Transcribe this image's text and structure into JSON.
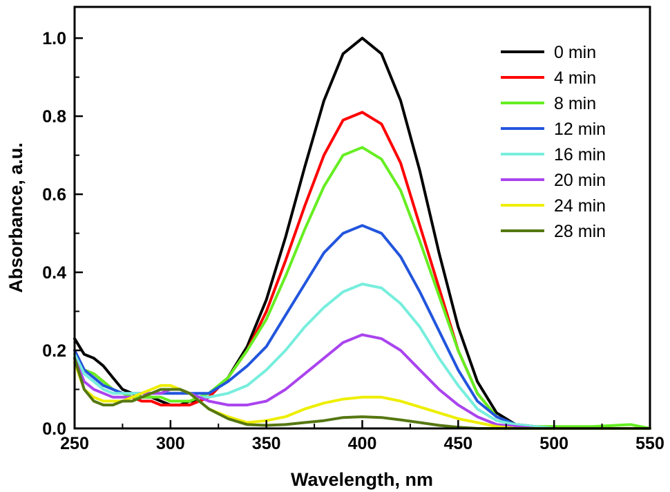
{
  "chart_data": {
    "type": "line",
    "title": "",
    "xlabel": "Wavelength, nm",
    "ylabel": "Absorbance, a.u.",
    "xlim": [
      250,
      550
    ],
    "ylim": [
      0.0,
      1.08
    ],
    "xticks": [
      "250",
      "300",
      "350",
      "400",
      "450",
      "500",
      "550"
    ],
    "yticks": [
      "0.0",
      "0.2",
      "0.4",
      "0.6",
      "0.8",
      "1.0"
    ],
    "grid": false,
    "legend_position": "top-right",
    "series": [
      {
        "name": "0 min",
        "color": "#000000",
        "x": [
          250,
          255,
          260,
          265,
          270,
          275,
          280,
          285,
          290,
          295,
          300,
          305,
          310,
          315,
          320,
          330,
          340,
          350,
          360,
          370,
          380,
          390,
          400,
          410,
          420,
          430,
          440,
          450,
          460,
          470,
          480,
          490,
          500,
          520,
          550
        ],
        "y": [
          0.23,
          0.19,
          0.18,
          0.16,
          0.13,
          0.1,
          0.09,
          0.08,
          0.08,
          0.07,
          0.06,
          0.06,
          0.07,
          0.07,
          0.08,
          0.13,
          0.21,
          0.33,
          0.49,
          0.67,
          0.84,
          0.96,
          1.0,
          0.96,
          0.84,
          0.66,
          0.45,
          0.26,
          0.12,
          0.04,
          0.01,
          0.005,
          0.0,
          0.0,
          0.0
        ]
      },
      {
        "name": "4 min",
        "color": "#ff0000",
        "x": [
          250,
          255,
          260,
          265,
          270,
          275,
          280,
          285,
          290,
          295,
          300,
          305,
          310,
          315,
          320,
          330,
          340,
          350,
          360,
          370,
          380,
          390,
          400,
          410,
          420,
          430,
          440,
          450,
          460,
          470,
          480,
          490,
          500,
          520,
          550
        ],
        "y": [
          0.2,
          0.15,
          0.14,
          0.12,
          0.1,
          0.09,
          0.08,
          0.07,
          0.07,
          0.06,
          0.06,
          0.06,
          0.06,
          0.07,
          0.08,
          0.13,
          0.2,
          0.3,
          0.43,
          0.57,
          0.7,
          0.79,
          0.81,
          0.78,
          0.68,
          0.52,
          0.36,
          0.2,
          0.09,
          0.03,
          0.01,
          0.005,
          0.0,
          0.0,
          0.0
        ]
      },
      {
        "name": "8 min",
        "color": "#66ee22",
        "x": [
          250,
          255,
          260,
          265,
          270,
          275,
          280,
          285,
          290,
          295,
          300,
          305,
          310,
          315,
          320,
          330,
          340,
          350,
          360,
          370,
          380,
          390,
          400,
          410,
          420,
          430,
          440,
          450,
          460,
          470,
          480,
          490,
          500,
          520,
          540,
          550
        ],
        "y": [
          0.19,
          0.15,
          0.14,
          0.12,
          0.1,
          0.09,
          0.08,
          0.08,
          0.08,
          0.08,
          0.07,
          0.07,
          0.07,
          0.08,
          0.09,
          0.13,
          0.2,
          0.28,
          0.39,
          0.51,
          0.62,
          0.7,
          0.72,
          0.69,
          0.61,
          0.48,
          0.34,
          0.2,
          0.09,
          0.03,
          0.01,
          0.005,
          0.005,
          0.005,
          0.01,
          0.0
        ]
      },
      {
        "name": "12 min",
        "color": "#2255dd",
        "x": [
          250,
          255,
          260,
          265,
          270,
          275,
          280,
          285,
          290,
          295,
          300,
          305,
          310,
          315,
          320,
          330,
          340,
          350,
          360,
          370,
          380,
          390,
          400,
          410,
          420,
          430,
          440,
          450,
          460,
          470,
          480,
          490,
          500,
          520,
          550
        ],
        "y": [
          0.2,
          0.15,
          0.13,
          0.11,
          0.1,
          0.09,
          0.09,
          0.09,
          0.09,
          0.09,
          0.09,
          0.09,
          0.09,
          0.09,
          0.09,
          0.12,
          0.16,
          0.21,
          0.29,
          0.37,
          0.45,
          0.5,
          0.52,
          0.5,
          0.44,
          0.35,
          0.25,
          0.15,
          0.07,
          0.03,
          0.01,
          0.005,
          0.0,
          0.0,
          0.0
        ]
      },
      {
        "name": "16 min",
        "color": "#77eedd",
        "x": [
          250,
          255,
          260,
          265,
          270,
          275,
          280,
          285,
          290,
          295,
          300,
          305,
          310,
          315,
          320,
          330,
          340,
          350,
          360,
          370,
          380,
          390,
          400,
          410,
          420,
          430,
          440,
          450,
          460,
          470,
          480,
          490,
          500,
          520,
          550
        ],
        "y": [
          0.19,
          0.14,
          0.12,
          0.1,
          0.09,
          0.09,
          0.09,
          0.09,
          0.09,
          0.09,
          0.1,
          0.1,
          0.09,
          0.08,
          0.08,
          0.09,
          0.11,
          0.15,
          0.2,
          0.26,
          0.31,
          0.35,
          0.37,
          0.36,
          0.32,
          0.26,
          0.18,
          0.11,
          0.05,
          0.02,
          0.01,
          0.005,
          0.0,
          0.0,
          0.0
        ]
      },
      {
        "name": "20 min",
        "color": "#aa44ee",
        "x": [
          250,
          255,
          260,
          265,
          270,
          275,
          280,
          285,
          290,
          295,
          300,
          305,
          310,
          315,
          320,
          330,
          340,
          350,
          360,
          370,
          380,
          390,
          400,
          410,
          420,
          430,
          440,
          450,
          460,
          470,
          480,
          490,
          500,
          520,
          550
        ],
        "y": [
          0.18,
          0.12,
          0.1,
          0.09,
          0.08,
          0.08,
          0.08,
          0.09,
          0.09,
          0.09,
          0.1,
          0.1,
          0.09,
          0.08,
          0.07,
          0.06,
          0.06,
          0.07,
          0.1,
          0.14,
          0.18,
          0.22,
          0.24,
          0.23,
          0.2,
          0.15,
          0.1,
          0.06,
          0.03,
          0.01,
          0.005,
          0.0,
          0.0,
          0.0,
          0.0
        ]
      },
      {
        "name": "24 min",
        "color": "#eeee00",
        "x": [
          250,
          255,
          260,
          265,
          270,
          275,
          280,
          285,
          290,
          295,
          300,
          305,
          310,
          315,
          320,
          330,
          340,
          350,
          360,
          370,
          380,
          390,
          400,
          410,
          420,
          430,
          440,
          450,
          460,
          470,
          480,
          500,
          550
        ],
        "y": [
          0.17,
          0.1,
          0.08,
          0.07,
          0.07,
          0.07,
          0.08,
          0.09,
          0.1,
          0.11,
          0.11,
          0.1,
          0.09,
          0.07,
          0.05,
          0.03,
          0.015,
          0.02,
          0.03,
          0.05,
          0.065,
          0.075,
          0.08,
          0.08,
          0.07,
          0.055,
          0.04,
          0.025,
          0.015,
          0.005,
          0.0,
          0.0,
          0.0
        ]
      },
      {
        "name": "28 min",
        "color": "#557711",
        "x": [
          250,
          255,
          260,
          265,
          270,
          275,
          280,
          285,
          290,
          295,
          300,
          305,
          310,
          315,
          320,
          330,
          340,
          350,
          360,
          370,
          380,
          390,
          400,
          410,
          420,
          430,
          440,
          450,
          460,
          500,
          550
        ],
        "y": [
          0.18,
          0.1,
          0.07,
          0.06,
          0.06,
          0.07,
          0.07,
          0.08,
          0.09,
          0.1,
          0.1,
          0.1,
          0.09,
          0.07,
          0.05,
          0.025,
          0.01,
          0.008,
          0.01,
          0.015,
          0.02,
          0.028,
          0.03,
          0.028,
          0.022,
          0.015,
          0.008,
          0.003,
          0.0,
          0.0,
          0.0
        ]
      }
    ]
  }
}
